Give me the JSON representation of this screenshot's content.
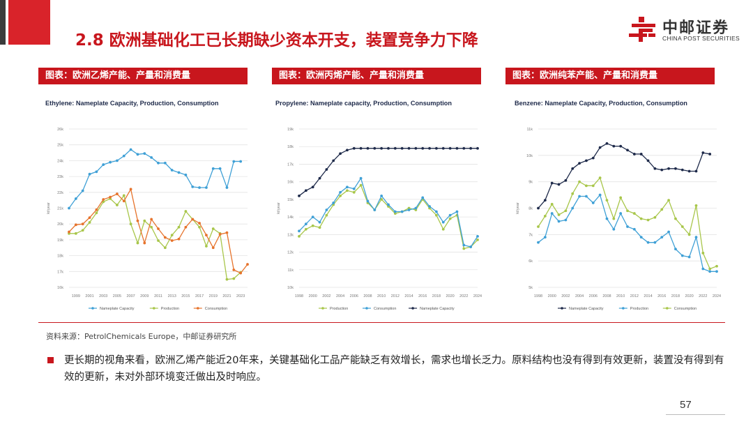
{
  "header": {
    "title": "2.8 欧洲基础化工已长期缺少资本开支，装置竞争力下降",
    "logo_cn": "中邮证券",
    "logo_en": "CHINA POST SECURITIES",
    "accent_color": "#c8161d"
  },
  "panels": [
    {
      "label": "图表：欧洲乙烯产能、产量和消费量"
    },
    {
      "label": "图表：欧洲丙烯产能、产量和消费量"
    },
    {
      "label": "图表：欧洲纯苯产能、产量和消费量"
    }
  ],
  "chart_data": [
    {
      "type": "line",
      "title": "Ethylene: Nameplate Capacity, Production, Consumption",
      "ylabel": "kt/year",
      "ylim": [
        16000,
        26000
      ],
      "yticks": [
        16000,
        17000,
        18000,
        19000,
        20000,
        21000,
        22000,
        23000,
        24000,
        25000,
        26000
      ],
      "ytick_labels": [
        "16k",
        "17k",
        "18k",
        "19k",
        "20k",
        "21k",
        "22k",
        "23k",
        "24k",
        "25k",
        "26k"
      ],
      "x": [
        1998,
        1999,
        2000,
        2001,
        2002,
        2003,
        2004,
        2005,
        2006,
        2007,
        2008,
        2009,
        2010,
        2011,
        2012,
        2013,
        2014,
        2015,
        2016,
        2017,
        2018,
        2019,
        2020,
        2021,
        2022,
        2023,
        2024
      ],
      "xtick_labels": [
        "1999",
        "2001",
        "2003",
        "2005",
        "2007",
        "2009",
        "2011",
        "2013",
        "2015",
        "2017",
        "2019",
        "2021",
        "2023"
      ],
      "legend_position": "bottom",
      "grid": true,
      "series": [
        {
          "name": "Nameplate Capacity",
          "color": "#3fa0d6",
          "values": [
            21000,
            21600,
            22100,
            23150,
            23300,
            23750,
            23900,
            24000,
            24300,
            24700,
            24400,
            24450,
            24200,
            23850,
            23850,
            23400,
            23250,
            23100,
            22350,
            22300,
            22300,
            23500,
            23500,
            22300,
            23950,
            23950,
            null
          ]
        },
        {
          "name": "Production",
          "color": "#a8c64a",
          "values": [
            19400,
            19400,
            19600,
            20100,
            20700,
            21400,
            21600,
            21200,
            21800,
            20000,
            18800,
            20200,
            19800,
            18950,
            18500,
            19300,
            19800,
            20800,
            20300,
            19800,
            18600,
            19700,
            19400,
            16500,
            16550,
            16950,
            null
          ]
        },
        {
          "name": "Consumption",
          "color": "#e6732c",
          "values": [
            19500,
            19950,
            20000,
            20400,
            20900,
            21550,
            21700,
            21900,
            21450,
            22200,
            20200,
            18800,
            20300,
            19700,
            19150,
            18950,
            19050,
            19800,
            20300,
            20050,
            19300,
            18500,
            19350,
            19450,
            17100,
            16900,
            17450
          ]
        }
      ]
    },
    {
      "type": "line",
      "title": "Propylene: Nameplate capacity, Production, Consumption",
      "ylabel": "kt/year",
      "ylim": [
        10000,
        19000
      ],
      "yticks": [
        10000,
        11000,
        12000,
        13000,
        14000,
        15000,
        16000,
        17000,
        18000,
        19000
      ],
      "ytick_labels": [
        "10k",
        "11k",
        "12k",
        "13k",
        "14k",
        "15k",
        "16k",
        "17k",
        "18k",
        "19k"
      ],
      "x": [
        1998,
        1999,
        2000,
        2001,
        2002,
        2003,
        2004,
        2005,
        2006,
        2007,
        2008,
        2009,
        2010,
        2011,
        2012,
        2013,
        2014,
        2015,
        2016,
        2017,
        2018,
        2019,
        2020,
        2021,
        2022,
        2023,
        2024
      ],
      "xtick_labels": [
        "1998",
        "2000",
        "2002",
        "2004",
        "2006",
        "2008",
        "2010",
        "2012",
        "2014",
        "2016",
        "2018",
        "2020",
        "2022",
        "2024"
      ],
      "legend_position": "bottom",
      "grid": true,
      "series": [
        {
          "name": "Production",
          "color": "#a8c64a",
          "values": [
            12900,
            13300,
            13500,
            13400,
            14100,
            14700,
            15200,
            15500,
            15400,
            15800,
            14800,
            14400,
            15000,
            14600,
            14200,
            14300,
            14500,
            14400,
            15000,
            14500,
            14100,
            13300,
            13900,
            14100,
            12200,
            12300,
            12700
          ]
        },
        {
          "name": "Consumption",
          "color": "#3fa0d6",
          "values": [
            13200,
            13600,
            14000,
            13700,
            14400,
            14800,
            15400,
            15700,
            15600,
            16200,
            14900,
            14400,
            15200,
            14700,
            14300,
            14300,
            14400,
            14500,
            15100,
            14600,
            14300,
            13700,
            14100,
            14300,
            12400,
            12300,
            12900
          ]
        },
        {
          "name": "Nameplate Capacity",
          "color": "#1e2a4a",
          "values": [
            15200,
            15500,
            15700,
            16200,
            16700,
            17200,
            17600,
            17800,
            17900,
            17900,
            17900,
            17900,
            17900,
            17900,
            17900,
            17900,
            17900,
            17900,
            17900,
            17900,
            17900,
            17900,
            17900,
            17900,
            17900,
            17900,
            17900
          ]
        }
      ]
    },
    {
      "type": "line",
      "title": "Benzene: Nameplate Capacity, Production, Consumption",
      "ylabel": "kt/year",
      "ylim": [
        5000,
        11000
      ],
      "yticks": [
        5000,
        6000,
        7000,
        8000,
        9000,
        10000,
        11000
      ],
      "ytick_labels": [
        "5k",
        "6k",
        "7k",
        "8k",
        "9k",
        "10k",
        "11k"
      ],
      "x": [
        1998,
        1999,
        2000,
        2001,
        2002,
        2003,
        2004,
        2005,
        2006,
        2007,
        2008,
        2009,
        2010,
        2011,
        2012,
        2013,
        2014,
        2015,
        2016,
        2017,
        2018,
        2019,
        2020,
        2021,
        2022,
        2023,
        2024
      ],
      "xtick_labels": [
        "1998",
        "2000",
        "2002",
        "2004",
        "2006",
        "2008",
        "2010",
        "2012",
        "2014",
        "2016",
        "2018",
        "2020",
        "2022",
        "2024"
      ],
      "legend_position": "bottom",
      "grid": true,
      "series": [
        {
          "name": "Nameplate Capacity",
          "color": "#1e2a4a",
          "values": [
            8000,
            8300,
            8950,
            8900,
            9050,
            9500,
            9700,
            9800,
            9900,
            10300,
            10450,
            10350,
            10350,
            10200,
            10050,
            10050,
            9800,
            9500,
            9450,
            9500,
            9500,
            9450,
            9400,
            9400,
            10100,
            10050,
            null
          ]
        },
        {
          "name": "Production",
          "color": "#3fa0d6",
          "values": [
            6700,
            6900,
            7800,
            7500,
            7550,
            8000,
            8450,
            8450,
            8200,
            8500,
            7600,
            7200,
            7800,
            7300,
            7200,
            6900,
            6700,
            6700,
            6900,
            7100,
            6450,
            6200,
            6150,
            6900,
            5700,
            5600,
            5600
          ]
        },
        {
          "name": "Consumption",
          "color": "#a8c64a",
          "values": [
            7300,
            7700,
            8150,
            7750,
            7900,
            8550,
            9000,
            8850,
            8850,
            9150,
            8300,
            7600,
            8400,
            7900,
            7800,
            7600,
            7550,
            7650,
            7950,
            8300,
            7600,
            7300,
            7000,
            8100,
            6300,
            5700,
            5800
          ]
        }
      ]
    }
  ],
  "footer": {
    "source": "资料来源：PetrolChemicals Europe，中邮证券研究所",
    "body": "更长期的视角来看，欧洲乙烯产能近20年来，关键基础化工品产能缺乏有效增长，需求也增长乏力。原料结构也没有得到有效更新，装置没有得到有效的更新，未对外部环境变迁做出及时响应。",
    "page_number": "57"
  }
}
